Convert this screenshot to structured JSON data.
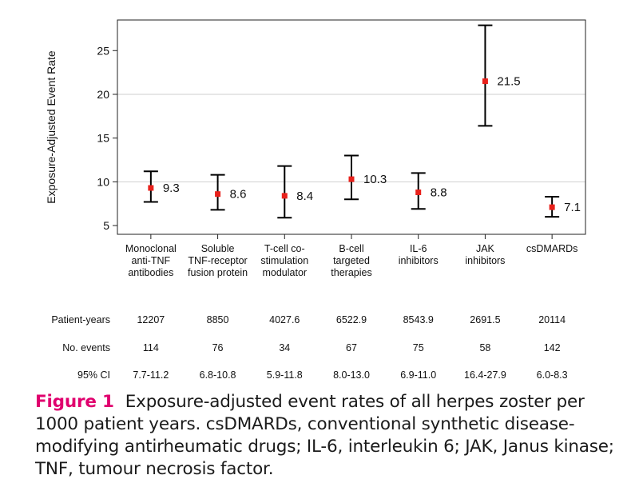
{
  "chart_data": {
    "type": "scatter",
    "ylabel": "Exposure-Adjusted Event Rate",
    "ylim": [
      4,
      28.5
    ],
    "yticks": [
      5,
      10,
      15,
      20,
      25
    ],
    "grid": "horizontal at 10 and 20",
    "categories": [
      [
        "Monoclonal",
        "anti-TNF",
        "antibodies"
      ],
      [
        "Soluble",
        "TNF-receptor",
        "fusion protein"
      ],
      [
        "T-cell co-",
        "stimulation",
        "modulator"
      ],
      [
        "B-cell",
        "targeted",
        "therapies"
      ],
      [
        "IL-6",
        "inhibitors"
      ],
      [
        "JAK",
        "inhibitors"
      ],
      [
        "csDMARDs"
      ]
    ],
    "values": [
      9.3,
      8.6,
      8.4,
      10.3,
      8.8,
      21.5,
      7.1
    ],
    "value_labels": [
      "9.3",
      "8.6",
      "8.4",
      "10.3",
      "8.8",
      "21.5",
      "7.1"
    ],
    "ci_low": [
      7.7,
      6.8,
      5.9,
      8.0,
      6.9,
      16.4,
      6.0
    ],
    "ci_high": [
      11.2,
      10.8,
      11.8,
      13.0,
      11.0,
      27.9,
      8.3
    ],
    "point_color": "#e8211b",
    "errorbar_color": "#000000",
    "table": {
      "row_labels": [
        "Patient-years",
        "No. events",
        "95% CI"
      ],
      "rows": [
        [
          "12207",
          "8850",
          "4027.6",
          "6522.9",
          "8543.9",
          "2691.5",
          "20114"
        ],
        [
          "114",
          "76",
          "34",
          "67",
          "75",
          "58",
          "142"
        ],
        [
          "7.7-11.2",
          "6.8-10.8",
          "5.9-11.8",
          "8.0-13.0",
          "6.9-11.0",
          "16.4-27.9",
          "6.0-8.3"
        ]
      ]
    }
  },
  "caption": {
    "label": "Figure 1",
    "text": "Exposure-adjusted event rates of all herpes zoster per 1000 patient years. csDMARDs, conventional synthetic disease-modifying antirheumatic drugs; IL-6, interleukin 6; JAK, Janus kinase; TNF, tumour necrosis factor.",
    "label_color": "#e0006e"
  }
}
